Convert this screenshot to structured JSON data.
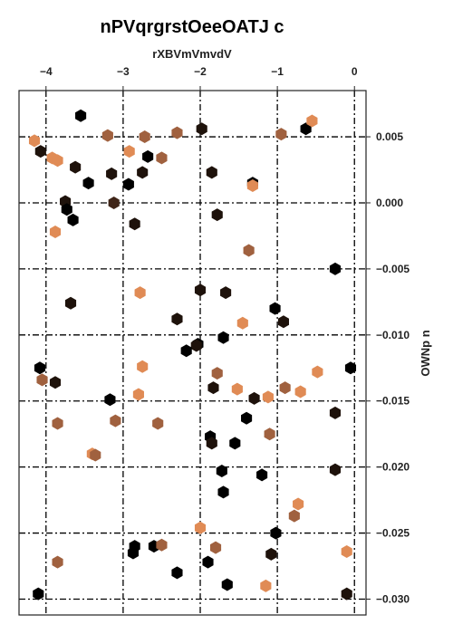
{
  "chart_data": {
    "type": "scatter",
    "title": "nPVqrgrstOeeOATJ c",
    "xlabel": "rXBVmVmvdV",
    "ylabel": "OWNp n",
    "x_axis_position": "top",
    "y_axis_position": "right",
    "xlim": [
      -4.35,
      0.15
    ],
    "ylim": [
      -0.0312,
      0.0085
    ],
    "xticks": [
      -4,
      -3,
      -2,
      -1,
      0
    ],
    "xtick_labels": [
      "−4",
      "−3",
      "−2",
      "−1",
      "0"
    ],
    "yticks": [
      0.005,
      0.0,
      -0.005,
      -0.01,
      -0.015,
      -0.02,
      -0.025,
      -0.03
    ],
    "ytick_labels": [
      "0.005",
      "0.000",
      "−0.005",
      "−0.010",
      "−0.015",
      "−0.020",
      "−0.025",
      "−0.030"
    ],
    "grid": true,
    "marker": "hexagon",
    "color_palette": [
      "#000000",
      "#1e120b",
      "#3f2518",
      "#a0613f",
      "#c77848",
      "#e08b55"
    ],
    "points": [
      {
        "x": -3.55,
        "y": 0.0066,
        "c": "#000000"
      },
      {
        "x": -3.2,
        "y": 0.0051,
        "c": "#a0613f"
      },
      {
        "x": -2.72,
        "y": 0.005,
        "c": "#a0613f"
      },
      {
        "x": -2.3,
        "y": 0.0053,
        "c": "#a0613f"
      },
      {
        "x": -1.98,
        "y": 0.0056,
        "c": "#1e120b"
      },
      {
        "x": -0.95,
        "y": 0.0052,
        "c": "#a0613f"
      },
      {
        "x": -0.63,
        "y": 0.0056,
        "c": "#000000"
      },
      {
        "x": -0.55,
        "y": 0.0062,
        "c": "#e08b55"
      },
      {
        "x": -4.15,
        "y": 0.0047,
        "c": "#e08b55"
      },
      {
        "x": -4.07,
        "y": 0.0039,
        "c": "#1e120b"
      },
      {
        "x": -3.92,
        "y": 0.0034,
        "c": "#e08b55"
      },
      {
        "x": -3.85,
        "y": 0.0032,
        "c": "#e08b55"
      },
      {
        "x": -3.62,
        "y": 0.0027,
        "c": "#1e120b"
      },
      {
        "x": -3.45,
        "y": 0.0015,
        "c": "#000000"
      },
      {
        "x": -3.15,
        "y": 0.0022,
        "c": "#1e120b"
      },
      {
        "x": -2.93,
        "y": 0.0014,
        "c": "#000000"
      },
      {
        "x": -2.92,
        "y": 0.0039,
        "c": "#e08b55"
      },
      {
        "x": -2.75,
        "y": 0.0023,
        "c": "#1e120b"
      },
      {
        "x": -2.68,
        "y": 0.0035,
        "c": "#000000"
      },
      {
        "x": -2.5,
        "y": 0.0034,
        "c": "#a0613f"
      },
      {
        "x": -1.85,
        "y": 0.0023,
        "c": "#1e120b"
      },
      {
        "x": -1.32,
        "y": 0.0015,
        "c": "#000000"
      },
      {
        "x": -1.32,
        "y": 0.0013,
        "c": "#e08b55"
      },
      {
        "x": -3.75,
        "y": 0.0001,
        "c": "#1e120b"
      },
      {
        "x": -3.73,
        "y": -0.0005,
        "c": "#000000"
      },
      {
        "x": -3.65,
        "y": -0.0013,
        "c": "#000000"
      },
      {
        "x": -3.12,
        "y": 0.0,
        "c": "#3f2518"
      },
      {
        "x": -2.85,
        "y": -0.0016,
        "c": "#1e120b"
      },
      {
        "x": -1.78,
        "y": -0.0009,
        "c": "#1e120b"
      },
      {
        "x": -3.88,
        "y": -0.0022,
        "c": "#e08b55"
      },
      {
        "x": -1.37,
        "y": -0.0036,
        "c": "#a0613f"
      },
      {
        "x": -0.25,
        "y": -0.005,
        "c": "#000000"
      },
      {
        "x": -3.68,
        "y": -0.0076,
        "c": "#1e120b"
      },
      {
        "x": -2.78,
        "y": -0.0068,
        "c": "#e08b55"
      },
      {
        "x": -2.0,
        "y": -0.0066,
        "c": "#1e120b"
      },
      {
        "x": -1.67,
        "y": -0.0068,
        "c": "#1e120b"
      },
      {
        "x": -1.45,
        "y": -0.0091,
        "c": "#e08b55"
      },
      {
        "x": -1.03,
        "y": -0.008,
        "c": "#000000"
      },
      {
        "x": -0.92,
        "y": -0.009,
        "c": "#1e120b"
      },
      {
        "x": -2.3,
        "y": -0.0088,
        "c": "#1e120b"
      },
      {
        "x": -2.03,
        "y": -0.0107,
        "c": "#000000"
      },
      {
        "x": -2.05,
        "y": -0.0108,
        "c": "#1e120b"
      },
      {
        "x": -2.18,
        "y": -0.0112,
        "c": "#000000"
      },
      {
        "x": -1.7,
        "y": -0.0102,
        "c": "#000000"
      },
      {
        "x": -4.08,
        "y": -0.0125,
        "c": "#000000"
      },
      {
        "x": -4.05,
        "y": -0.0134,
        "c": "#a0613f"
      },
      {
        "x": -3.88,
        "y": -0.0136,
        "c": "#1e120b"
      },
      {
        "x": -2.75,
        "y": -0.0124,
        "c": "#e08b55"
      },
      {
        "x": -1.78,
        "y": -0.0129,
        "c": "#a0613f"
      },
      {
        "x": -1.83,
        "y": -0.014,
        "c": "#1e120b"
      },
      {
        "x": -1.52,
        "y": -0.0141,
        "c": "#e08b55"
      },
      {
        "x": -1.3,
        "y": -0.0148,
        "c": "#1e120b"
      },
      {
        "x": -1.12,
        "y": -0.0147,
        "c": "#e08b55"
      },
      {
        "x": -0.9,
        "y": -0.014,
        "c": "#a0613f"
      },
      {
        "x": -0.7,
        "y": -0.0143,
        "c": "#e08b55"
      },
      {
        "x": -0.48,
        "y": -0.0128,
        "c": "#e08b55"
      },
      {
        "x": -0.05,
        "y": -0.0125,
        "c": "#000000"
      },
      {
        "x": -3.17,
        "y": -0.0149,
        "c": "#000000"
      },
      {
        "x": -2.8,
        "y": -0.0145,
        "c": "#e08b55"
      },
      {
        "x": -3.1,
        "y": -0.0165,
        "c": "#a0613f"
      },
      {
        "x": -3.85,
        "y": -0.0167,
        "c": "#a0613f"
      },
      {
        "x": -2.55,
        "y": -0.0167,
        "c": "#a0613f"
      },
      {
        "x": -1.4,
        "y": -0.0163,
        "c": "#000000"
      },
      {
        "x": -1.1,
        "y": -0.0175,
        "c": "#a0613f"
      },
      {
        "x": -0.25,
        "y": -0.0159,
        "c": "#1e120b"
      },
      {
        "x": -3.4,
        "y": -0.019,
        "c": "#e08b55"
      },
      {
        "x": -3.36,
        "y": -0.0191,
        "c": "#a0613f"
      },
      {
        "x": -1.87,
        "y": -0.0177,
        "c": "#000000"
      },
      {
        "x": -1.85,
        "y": -0.0182,
        "c": "#1e120b"
      },
      {
        "x": -1.55,
        "y": -0.0182,
        "c": "#000000"
      },
      {
        "x": -1.72,
        "y": -0.0203,
        "c": "#000000"
      },
      {
        "x": -1.2,
        "y": -0.0206,
        "c": "#000000"
      },
      {
        "x": -0.25,
        "y": -0.0202,
        "c": "#1e120b"
      },
      {
        "x": -1.7,
        "y": -0.0219,
        "c": "#000000"
      },
      {
        "x": -0.73,
        "y": -0.0228,
        "c": "#e08b55"
      },
      {
        "x": -0.78,
        "y": -0.0237,
        "c": "#a0613f"
      },
      {
        "x": -2.0,
        "y": -0.0246,
        "c": "#e08b55"
      },
      {
        "x": -1.02,
        "y": -0.025,
        "c": "#000000"
      },
      {
        "x": -2.85,
        "y": -0.026,
        "c": "#000000"
      },
      {
        "x": -2.87,
        "y": -0.0265,
        "c": "#000000"
      },
      {
        "x": -2.6,
        "y": -0.026,
        "c": "#000000"
      },
      {
        "x": -2.5,
        "y": -0.0259,
        "c": "#a0613f"
      },
      {
        "x": -1.8,
        "y": -0.0261,
        "c": "#a0613f"
      },
      {
        "x": -1.08,
        "y": -0.0266,
        "c": "#1e120b"
      },
      {
        "x": -0.1,
        "y": -0.0264,
        "c": "#e08b55"
      },
      {
        "x": -3.85,
        "y": -0.0272,
        "c": "#a0613f"
      },
      {
        "x": -1.9,
        "y": -0.0272,
        "c": "#000000"
      },
      {
        "x": -2.3,
        "y": -0.028,
        "c": "#000000"
      },
      {
        "x": -1.65,
        "y": -0.0289,
        "c": "#000000"
      },
      {
        "x": -1.15,
        "y": -0.029,
        "c": "#e08b55"
      },
      {
        "x": -4.1,
        "y": -0.0296,
        "c": "#000000"
      },
      {
        "x": -0.1,
        "y": -0.0296,
        "c": "#1e120b"
      }
    ]
  }
}
